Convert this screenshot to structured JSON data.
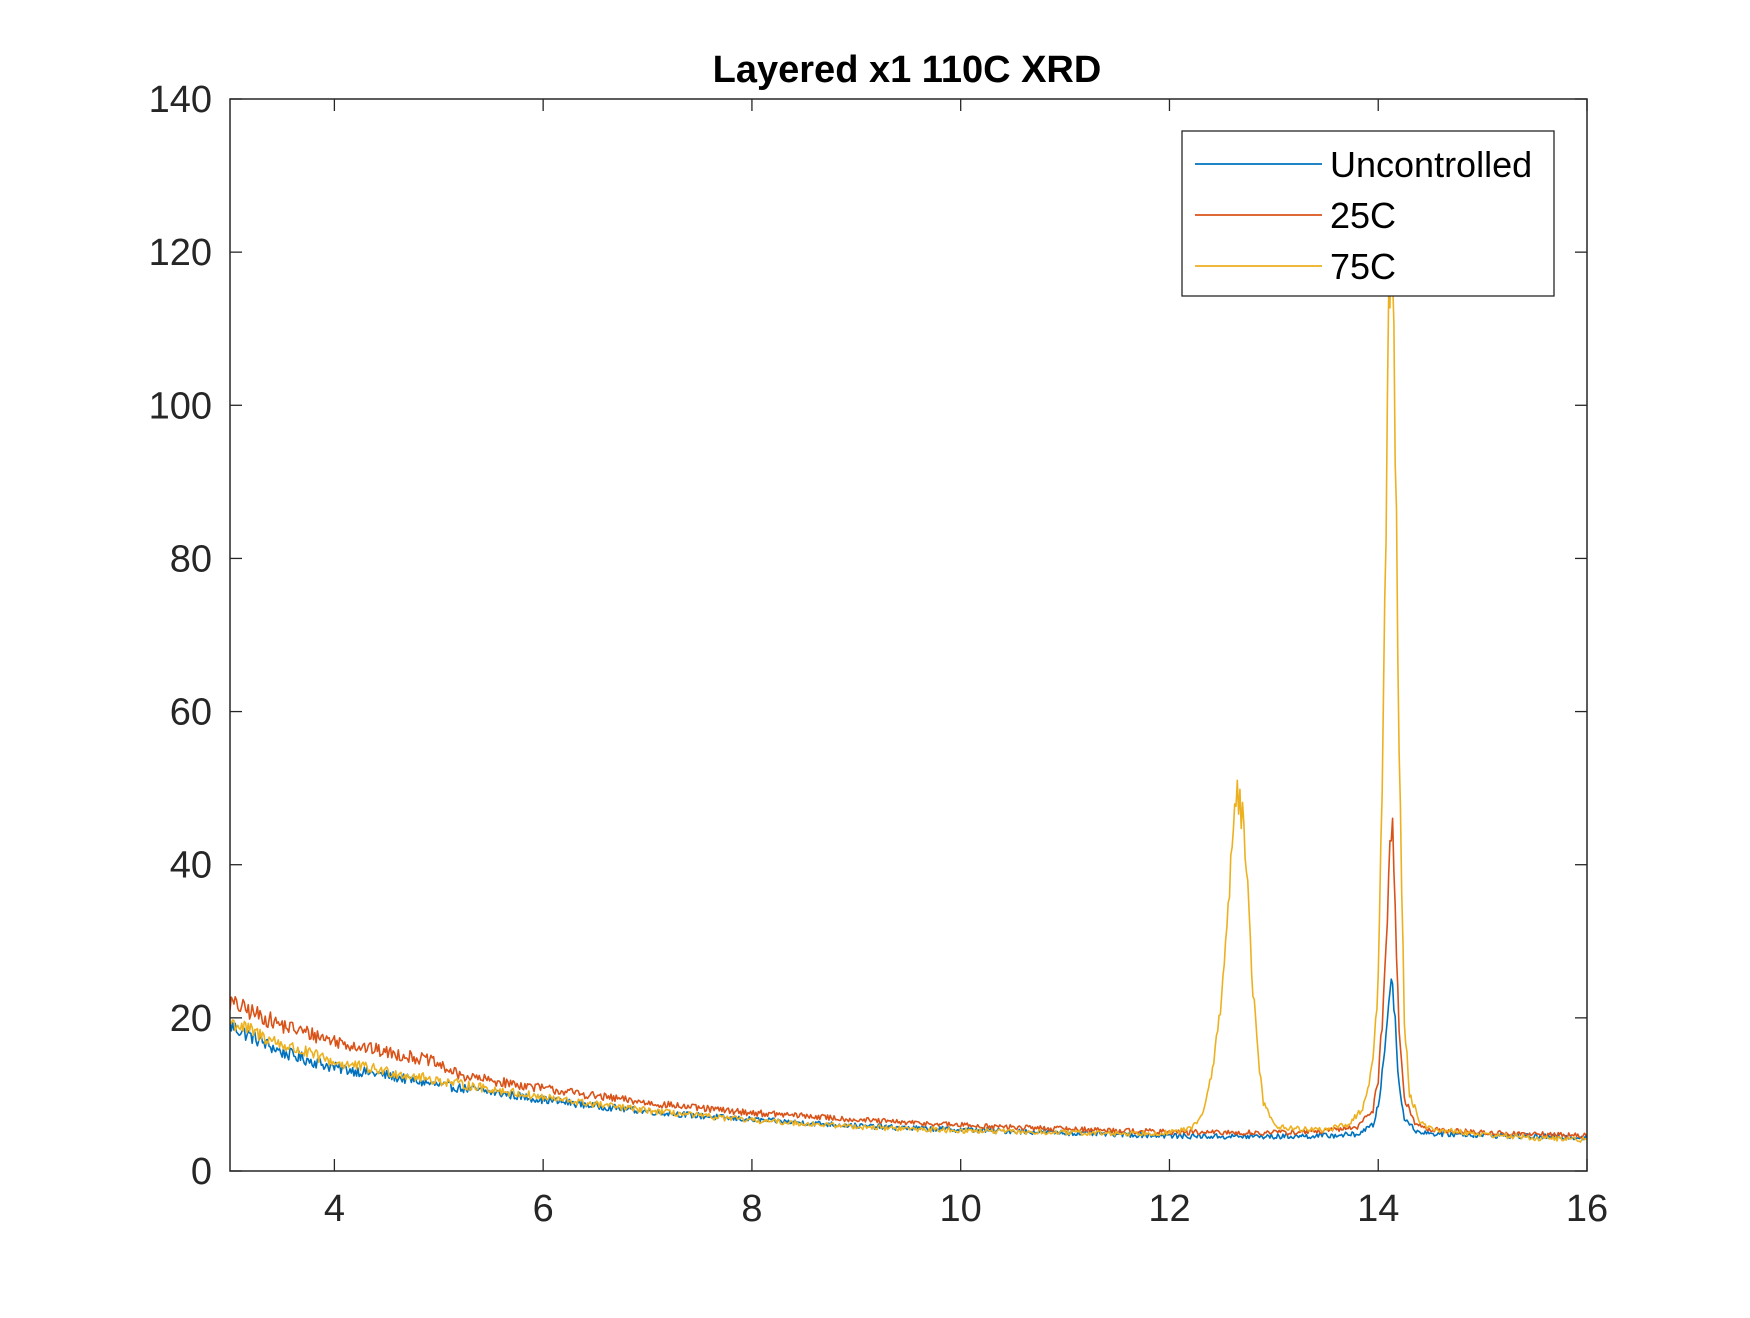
{
  "chart_data": {
    "type": "line",
    "title": "Layered x1 110C XRD",
    "xlabel": "",
    "ylabel": "",
    "xlim": [
      3,
      16
    ],
    "ylim": [
      0,
      140
    ],
    "xticks": [
      4,
      6,
      8,
      10,
      12,
      14,
      16
    ],
    "yticks": [
      0,
      20,
      40,
      60,
      80,
      100,
      120,
      140
    ],
    "grid": false,
    "legend_position": "top-right",
    "series": [
      {
        "name": "Uncontrolled",
        "color": "#0072BD",
        "points": [
          [
            3.0,
            19.0
          ],
          [
            3.5,
            15.5
          ],
          [
            4.0,
            13.5
          ],
          [
            4.5,
            12.5
          ],
          [
            5.0,
            11.2
          ],
          [
            5.5,
            10.3
          ],
          [
            6.0,
            9.3
          ],
          [
            6.5,
            8.5
          ],
          [
            7.0,
            7.8
          ],
          [
            7.5,
            7.2
          ],
          [
            8.0,
            6.7
          ],
          [
            8.5,
            6.3
          ],
          [
            9.0,
            5.9
          ],
          [
            9.5,
            5.6
          ],
          [
            10.0,
            5.4
          ],
          [
            10.5,
            5.2
          ],
          [
            11.0,
            5.0
          ],
          [
            11.5,
            4.8
          ],
          [
            12.0,
            4.6
          ],
          [
            12.5,
            4.5
          ],
          [
            13.0,
            4.5
          ],
          [
            13.5,
            4.6
          ],
          [
            13.8,
            4.8
          ],
          [
            13.95,
            6.0
          ],
          [
            14.0,
            8.5
          ],
          [
            14.05,
            14.0
          ],
          [
            14.1,
            22.0
          ],
          [
            14.13,
            26.0
          ],
          [
            14.16,
            20.0
          ],
          [
            14.2,
            11.0
          ],
          [
            14.25,
            7.0
          ],
          [
            14.35,
            5.3
          ],
          [
            14.5,
            4.9
          ],
          [
            15.0,
            4.7
          ],
          [
            15.5,
            4.5
          ],
          [
            16.0,
            4.4
          ]
        ]
      },
      {
        "name": "25C",
        "color": "#D95319",
        "points": [
          [
            3.0,
            22.0
          ],
          [
            3.5,
            19.0
          ],
          [
            4.0,
            17.0
          ],
          [
            4.5,
            15.5
          ],
          [
            4.9,
            14.5
          ],
          [
            5.2,
            12.5
          ],
          [
            5.5,
            11.8
          ],
          [
            6.0,
            10.8
          ],
          [
            6.5,
            9.8
          ],
          [
            7.0,
            8.9
          ],
          [
            7.5,
            8.2
          ],
          [
            8.0,
            7.6
          ],
          [
            8.5,
            7.2
          ],
          [
            9.0,
            6.7
          ],
          [
            9.5,
            6.3
          ],
          [
            10.0,
            6.0
          ],
          [
            10.5,
            5.7
          ],
          [
            11.0,
            5.5
          ],
          [
            11.5,
            5.3
          ],
          [
            12.0,
            5.1
          ],
          [
            12.5,
            5.0
          ],
          [
            13.0,
            5.0
          ],
          [
            13.5,
            5.2
          ],
          [
            13.8,
            5.8
          ],
          [
            13.95,
            8.0
          ],
          [
            14.0,
            12.0
          ],
          [
            14.05,
            22.0
          ],
          [
            14.1,
            38.0
          ],
          [
            14.13,
            47.0
          ],
          [
            14.16,
            36.0
          ],
          [
            14.2,
            18.0
          ],
          [
            14.25,
            9.5
          ],
          [
            14.35,
            6.3
          ],
          [
            14.5,
            5.4
          ],
          [
            15.0,
            5.0
          ],
          [
            15.5,
            4.8
          ],
          [
            16.0,
            4.6
          ]
        ]
      },
      {
        "name": "75C",
        "color": "#EDB120",
        "points": [
          [
            3.0,
            19.5
          ],
          [
            3.5,
            16.5
          ],
          [
            4.0,
            14.2
          ],
          [
            4.5,
            13.0
          ],
          [
            5.0,
            11.8
          ],
          [
            5.5,
            10.7
          ],
          [
            6.0,
            9.6
          ],
          [
            6.5,
            8.7
          ],
          [
            7.0,
            7.9
          ],
          [
            7.5,
            7.2
          ],
          [
            8.0,
            6.6
          ],
          [
            8.5,
            6.2
          ],
          [
            9.0,
            5.8
          ],
          [
            9.5,
            5.5
          ],
          [
            10.0,
            5.3
          ],
          [
            10.5,
            5.1
          ],
          [
            11.0,
            5.0
          ],
          [
            11.5,
            4.9
          ],
          [
            12.0,
            5.0
          ],
          [
            12.2,
            5.5
          ],
          [
            12.3,
            7.0
          ],
          [
            12.4,
            12.0
          ],
          [
            12.5,
            22.0
          ],
          [
            12.55,
            33.0
          ],
          [
            12.6,
            42.0
          ],
          [
            12.65,
            50.0
          ],
          [
            12.7,
            46.0
          ],
          [
            12.75,
            36.0
          ],
          [
            12.8,
            24.0
          ],
          [
            12.85,
            15.0
          ],
          [
            12.9,
            9.0
          ],
          [
            13.0,
            6.0
          ],
          [
            13.2,
            5.5
          ],
          [
            13.5,
            5.4
          ],
          [
            13.7,
            6.0
          ],
          [
            13.85,
            8.0
          ],
          [
            13.95,
            14.0
          ],
          [
            14.0,
            25.0
          ],
          [
            14.05,
            60.0
          ],
          [
            14.1,
            110.0
          ],
          [
            14.13,
            126.0
          ],
          [
            14.16,
            100.0
          ],
          [
            14.2,
            55.0
          ],
          [
            14.25,
            20.0
          ],
          [
            14.3,
            10.0
          ],
          [
            14.4,
            6.5
          ],
          [
            14.5,
            5.5
          ],
          [
            15.0,
            4.8
          ],
          [
            15.5,
            4.3
          ],
          [
            16.0,
            4.1
          ]
        ]
      }
    ]
  }
}
